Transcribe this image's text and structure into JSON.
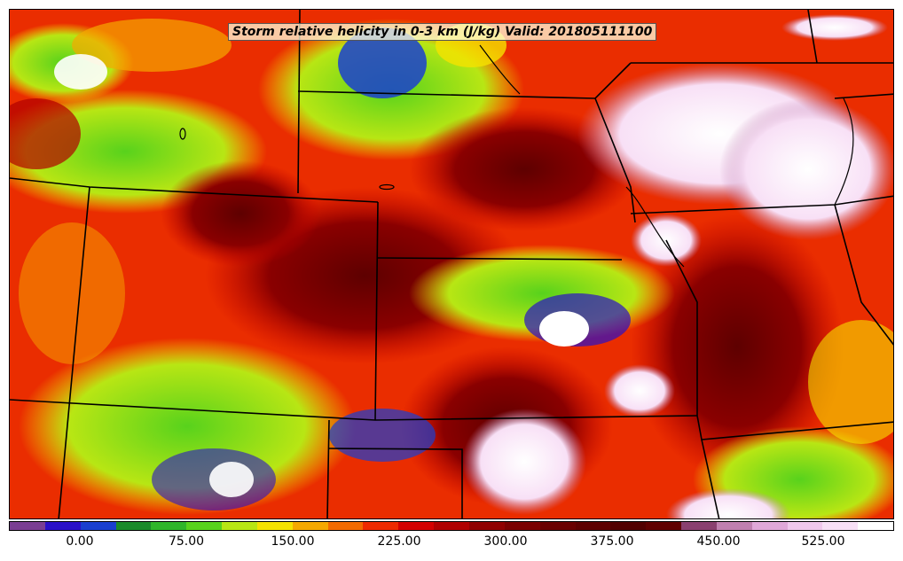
{
  "title": "Storm relative helicity in 0-3 km (J/kg) Valid: 201805111100",
  "colorbar": {
    "colors": [
      "#7a3e93",
      "#2a10c8",
      "#1a3fd0",
      "#1a8a2a",
      "#2fb52a",
      "#58d21c",
      "#b8e614",
      "#f5e200",
      "#f5a800",
      "#f26a00",
      "#ee2a00",
      "#d40000",
      "#b00000",
      "#900000",
      "#7a0000",
      "#6a0000",
      "#5e0000",
      "#520000",
      "#600000",
      "#8a4070",
      "#c080b0",
      "#e0a8d8",
      "#f0c8ec",
      "#f8e0f6",
      "#ffffff"
    ],
    "ticks": [
      "0.00",
      "75.00",
      "150.00",
      "225.00",
      "300.00",
      "375.00",
      "450.00",
      "525.00"
    ]
  }
}
